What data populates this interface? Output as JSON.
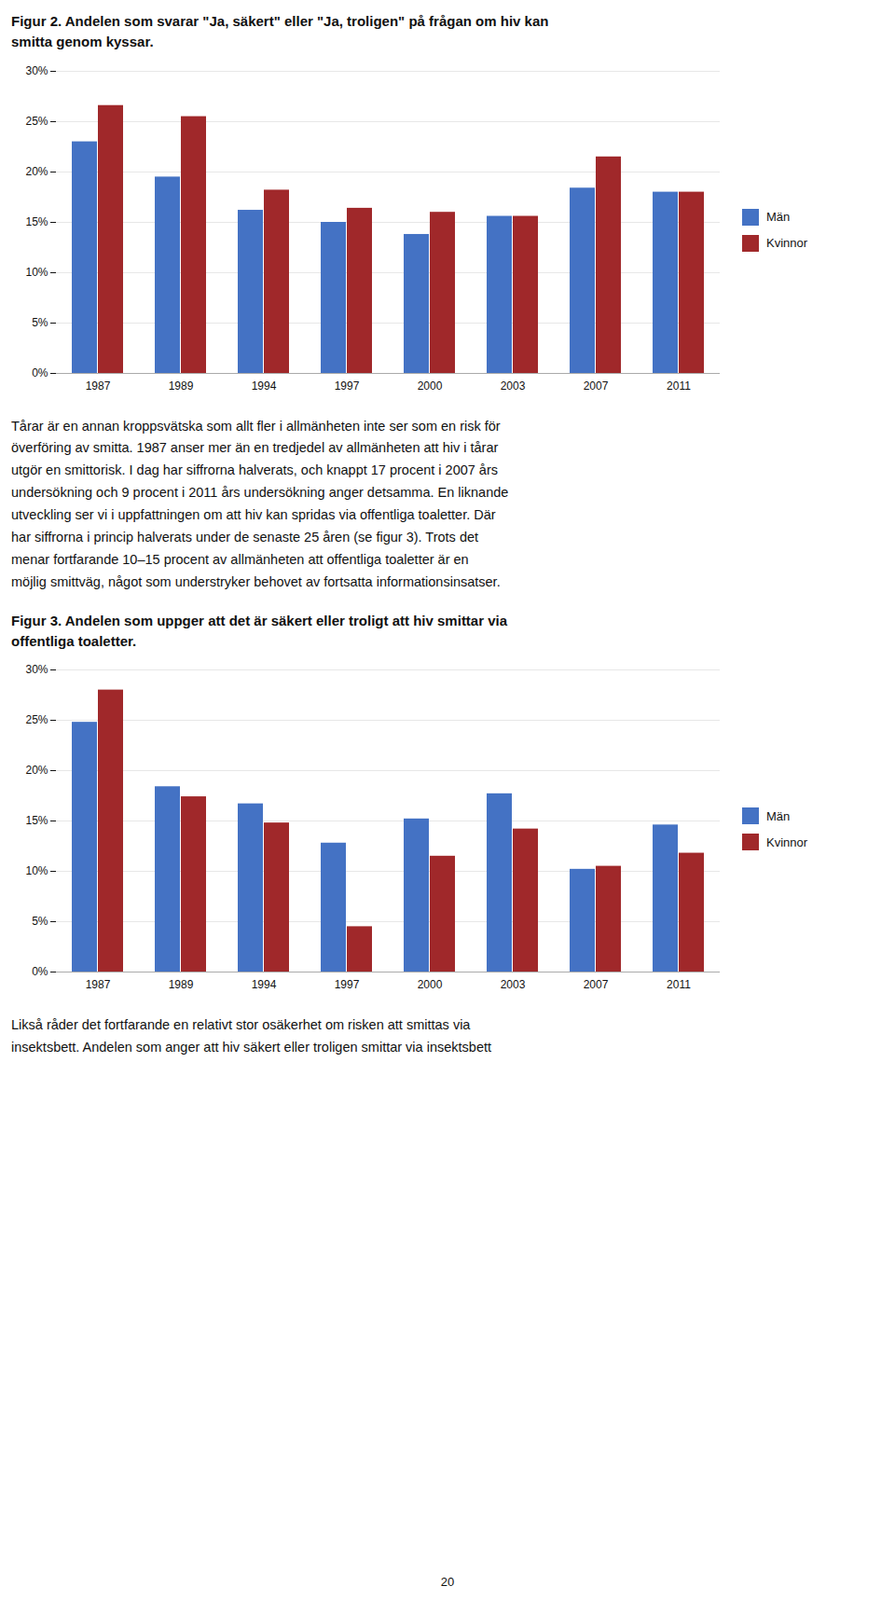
{
  "chart_data": [
    {
      "type": "bar",
      "title": "Figur 2. Andelen som svarar \"Ja, säkert\" eller \"Ja, troligen\" på frågan om hiv kan\nsmitta genom kyssar.",
      "categories": [
        "1987",
        "1989",
        "1994",
        "1997",
        "2000",
        "2003",
        "2007",
        "2011"
      ],
      "series": [
        {
          "name": "Män",
          "color": "#4472C4",
          "values": [
            23.0,
            19.5,
            16.2,
            15.0,
            13.8,
            15.6,
            18.4,
            18.0
          ]
        },
        {
          "name": "Kvinnor",
          "color": "#A0282A",
          "values": [
            26.6,
            25.5,
            18.2,
            16.4,
            16.0,
            15.6,
            21.5,
            18.0
          ]
        }
      ],
      "ylim": [
        0,
        30
      ],
      "yticks": [
        {
          "value": 0,
          "label": "0%"
        },
        {
          "value": 5,
          "label": "5%"
        },
        {
          "value": 10,
          "label": "10%"
        },
        {
          "value": 15,
          "label": "15%"
        },
        {
          "value": 20,
          "label": "20%"
        },
        {
          "value": 25,
          "label": "25%"
        },
        {
          "value": 30,
          "label": "30%"
        }
      ],
      "grid": true,
      "legend": "right",
      "annotations": [
        "Tårar är en annan kroppsvätska som allt fler i allmänheten inte ser som en risk för",
        "överföring av smitta. 1987 anser mer än en tredjedel av allmänheten att hiv i tårar",
        "utgör en smittorisk. I dag har siffrorna halverats, och knappt 17 procent i 2007 års",
        "undersökning och 9 procent i 2011 års undersökning anger detsamma. En liknande",
        "utveckling ser vi i uppfattningen om att hiv kan spridas via offentliga toaletter. Där",
        "har siffrorna i princip halverats under de senaste 25 åren (se figur 3). Trots det",
        "menar fortfarande 10–15 procent av allmänheten att offentliga toaletter är en",
        "möjlig smittväg, något som understryker behovet av fortsatta informationsinsatser."
      ]
    },
    {
      "type": "bar",
      "title": "Figur 3. Andelen som uppger att det är säkert eller troligt att hiv smittar via\noffentliga toaletter.",
      "categories": [
        "1987",
        "1989",
        "1994",
        "1997",
        "2000",
        "2003",
        "2007",
        "2011"
      ],
      "series": [
        {
          "name": "Män",
          "color": "#4472C4",
          "values": [
            24.8,
            18.4,
            16.7,
            12.8,
            15.2,
            17.7,
            10.2,
            14.6
          ]
        },
        {
          "name": "Kvinnor",
          "color": "#A0282A",
          "values": [
            28.0,
            17.4,
            14.8,
            4.5,
            11.5,
            14.2,
            10.5,
            11.8
          ]
        }
      ],
      "ylim": [
        0,
        30
      ],
      "yticks": [
        {
          "value": 0,
          "label": "0%"
        },
        {
          "value": 5,
          "label": "5%"
        },
        {
          "value": 10,
          "label": "10%"
        },
        {
          "value": 15,
          "label": "15%"
        },
        {
          "value": 20,
          "label": "20%"
        },
        {
          "value": 25,
          "label": "25%"
        },
        {
          "value": 30,
          "label": "30%"
        }
      ],
      "grid": true,
      "legend": "right",
      "annotations": [
        "Likså råder det fortfarande en relativt stor osäkerhet om risken att smittas via",
        "insektsbett. Andelen som anger att hiv säkert eller troligen smittar via insektsbett"
      ]
    }
  ],
  "page_number": "20"
}
